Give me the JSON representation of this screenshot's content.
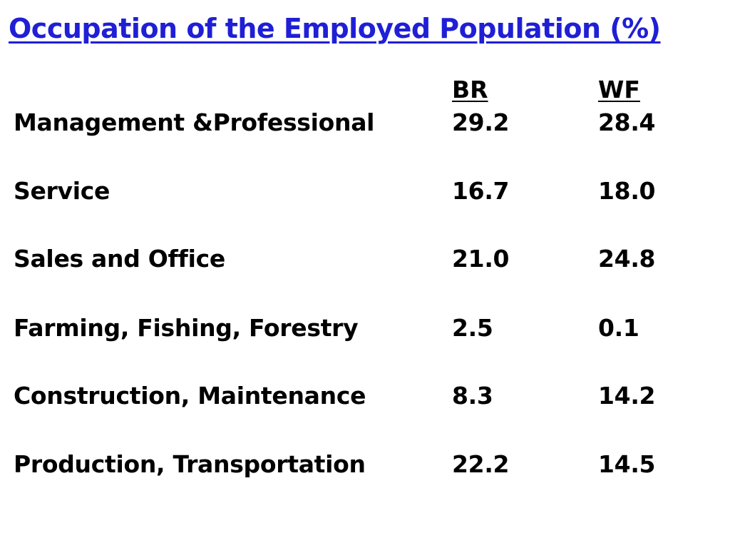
{
  "title": "Occupation of the Employed Population (%)",
  "columns": {
    "br": "BR",
    "wf": "WF"
  },
  "rows": [
    {
      "label": "Management &Professional",
      "br": "29.2",
      "wf": "28.4"
    },
    {
      "label": "Service",
      "br": "16.7",
      "wf": "18.0"
    },
    {
      "label": "Sales and Office",
      "br": "21.0",
      "wf": "24.8"
    },
    {
      "label": "Farming, Fishing, Forestry",
      "br": "2.5",
      "wf": "0.1"
    },
    {
      "label": "Construction, Maintenance",
      "br": "8.3",
      "wf": "14.2"
    },
    {
      "label": "Production, Transportation",
      "br": "22.2",
      "wf": "14.5"
    }
  ],
  "colors": {
    "title": "#1f1fd6",
    "text": "#000000",
    "background": "#ffffff"
  }
}
